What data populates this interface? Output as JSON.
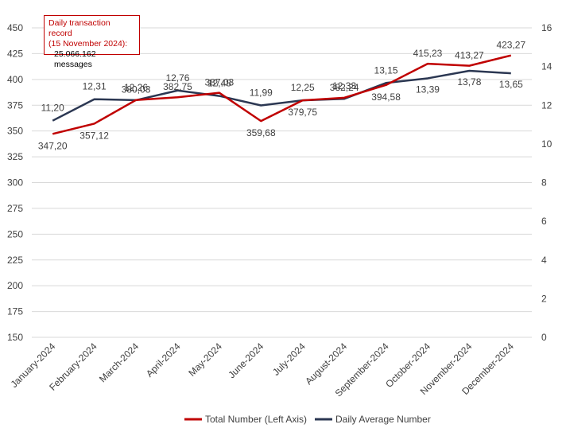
{
  "annotation": {
    "line1": "Daily transaction record",
    "line2": "(15 November 2024):",
    "line3": "25.066.162 messages"
  },
  "legend": {
    "total": "Total Number (Left Axis)",
    "daily": "Daily Average Number"
  },
  "colors": {
    "total": "#c00000",
    "daily": "#2b3752",
    "grid": "#d9d9d9",
    "text": "#404040"
  },
  "chart_data": {
    "type": "line",
    "categories": [
      "January-2024",
      "February-2024",
      "March-2024",
      "April-2024",
      "May-2024",
      "June-2024",
      "July-2024",
      "August-2024",
      "September-2024",
      "October-2024",
      "November-2024",
      "December-2024"
    ],
    "series": [
      {
        "name": "Total Number (Left Axis)",
        "axis": "left",
        "values": [
          347.2,
          357.12,
          380.03,
          382.75,
          387.03,
          359.68,
          379.75,
          382.24,
          394.58,
          415.23,
          413.27,
          423.27
        ],
        "labels": [
          "347,20",
          "357,12",
          "380,03",
          "382,75",
          "387,03",
          "359,68",
          "379,75",
          "382,24",
          "394,58",
          "415,23",
          "413,27",
          "423,27"
        ]
      },
      {
        "name": "Daily Average Number",
        "axis": "right",
        "values": [
          11.2,
          12.31,
          12.26,
          12.76,
          12.48,
          11.99,
          12.25,
          12.33,
          13.15,
          13.39,
          13.78,
          13.65
        ],
        "labels": [
          "11,20",
          "12,31",
          "12,26",
          "12,76",
          "12,48",
          "11,99",
          "12,25",
          "12,33",
          "13,15",
          "13,39",
          "13,78",
          "13,65"
        ]
      }
    ],
    "y_left": {
      "ylim": [
        150,
        450
      ],
      "ticks": [
        "150",
        "175",
        "200",
        "225",
        "250",
        "275",
        "300",
        "325",
        "350",
        "375",
        "400",
        "425",
        "450"
      ]
    },
    "y_right": {
      "ylim": [
        0,
        16
      ],
      "ticks": [
        "0",
        "2",
        "4",
        "6",
        "8",
        "10",
        "12",
        "14",
        "16"
      ]
    },
    "grid": true,
    "legend_position": "bottom"
  }
}
